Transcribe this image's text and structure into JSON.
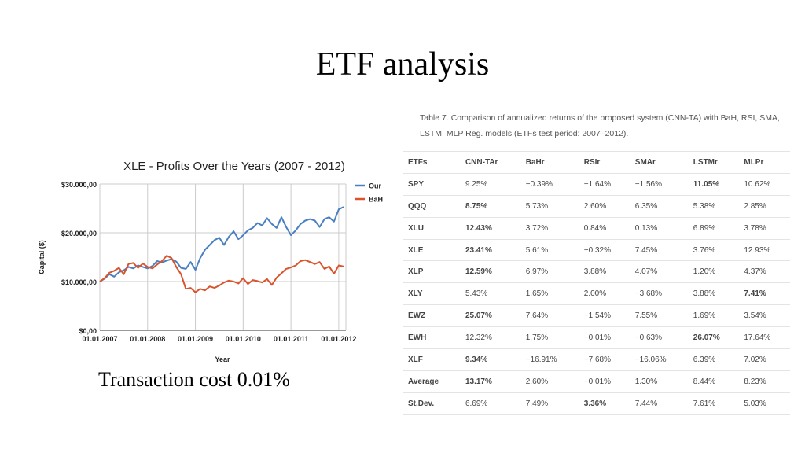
{
  "slide": {
    "title": "ETF analysis",
    "caption": "Transaction cost 0.01%"
  },
  "chart_data": {
    "type": "line",
    "title": "XLE - Profits Over the Years  (2007 - 2012)",
    "xlabel": "Year",
    "ylabel": "Capital ($)",
    "x_ticks": [
      "01.01.2007",
      "01.01.2008",
      "01.01.2009",
      "01.01.2010",
      "01.01.2011",
      "01.01.2012"
    ],
    "y_ticks": [
      "$0,00",
      "$10.000,00",
      "$20.000,00",
      "$30.000,00"
    ],
    "y_tick_values": [
      0,
      10000,
      20000,
      30000
    ],
    "xlim": [
      2007.0,
      2012.15
    ],
    "ylim": [
      0,
      30000
    ],
    "grid": true,
    "legend_position": "right",
    "x": [
      2007.0,
      2007.1,
      2007.2,
      2007.3,
      2007.4,
      2007.5,
      2007.6,
      2007.7,
      2007.8,
      2007.9,
      2008.0,
      2008.1,
      2008.2,
      2008.3,
      2008.4,
      2008.5,
      2008.6,
      2008.7,
      2008.8,
      2008.9,
      2009.0,
      2009.1,
      2009.2,
      2009.3,
      2009.4,
      2009.5,
      2009.6,
      2009.7,
      2009.8,
      2009.9,
      2010.0,
      2010.1,
      2010.2,
      2010.3,
      2010.4,
      2010.5,
      2010.6,
      2010.7,
      2010.8,
      2010.9,
      2011.0,
      2011.1,
      2011.2,
      2011.3,
      2011.4,
      2011.5,
      2011.6,
      2011.7,
      2011.8,
      2011.9,
      2012.0,
      2012.1
    ],
    "series": [
      {
        "name": "Our",
        "color": "#4a7fc1",
        "values": [
          10000,
          10600,
          11500,
          11000,
          11900,
          12300,
          13000,
          12700,
          13300,
          13000,
          12700,
          13200,
          14200,
          13900,
          14300,
          14600,
          14100,
          12800,
          12600,
          14000,
          12400,
          14800,
          16500,
          17500,
          18500,
          19000,
          17500,
          19200,
          20300,
          18700,
          19500,
          20500,
          21000,
          22000,
          21500,
          23000,
          21800,
          21000,
          23200,
          21200,
          19500,
          20500,
          21800,
          22500,
          22800,
          22500,
          21200,
          22800,
          23200,
          22300,
          24800,
          25300
        ]
      },
      {
        "name": "BaH",
        "color": "#d9542c",
        "values": [
          10000,
          10700,
          11800,
          12200,
          12800,
          11500,
          13600,
          13800,
          12800,
          13700,
          13000,
          12700,
          13500,
          14200,
          15300,
          14800,
          13000,
          11500,
          8500,
          8700,
          7800,
          8500,
          8200,
          9000,
          8700,
          9200,
          9800,
          10200,
          10000,
          9600,
          10700,
          9500,
          10300,
          10100,
          9800,
          10500,
          9300,
          10800,
          11700,
          12600,
          12900,
          13300,
          14200,
          14400,
          14000,
          13600,
          14000,
          12600,
          13100,
          11600,
          13300,
          13100
        ]
      }
    ]
  },
  "table": {
    "caption": "Table 7. Comparison of annualized returns of the proposed system (CNN-TA) with BaH, RSI, SMA, LSTM, MLP Reg. models (ETFs test period: 2007–2012).",
    "headers": [
      "ETFs",
      "CNN-TAr",
      "BaHr",
      "RSIr",
      "SMAr",
      "LSTMr",
      "MLPr"
    ],
    "rows": [
      {
        "cells": [
          "SPY",
          "9.25%",
          "−0.39%",
          "−1.64%",
          "−1.56%",
          "11.05%",
          "10.62%"
        ],
        "bold": [
          5
        ]
      },
      {
        "cells": [
          "QQQ",
          "8.75%",
          "5.73%",
          "2.60%",
          "6.35%",
          "5.38%",
          "2.85%"
        ],
        "bold": [
          1
        ]
      },
      {
        "cells": [
          "XLU",
          "12.43%",
          "3.72%",
          "0.84%",
          "0.13%",
          "6.89%",
          "3.78%"
        ],
        "bold": [
          1
        ]
      },
      {
        "cells": [
          "XLE",
          "23.41%",
          "5.61%",
          "−0.32%",
          "7.45%",
          "3.76%",
          "12.93%"
        ],
        "bold": [
          1
        ]
      },
      {
        "cells": [
          "XLP",
          "12.59%",
          "6.97%",
          "3.88%",
          "4.07%",
          "1.20%",
          "4.37%"
        ],
        "bold": [
          1
        ]
      },
      {
        "cells": [
          "XLY",
          "5.43%",
          "1.65%",
          "2.00%",
          "−3.68%",
          "3.88%",
          "7.41%"
        ],
        "bold": [
          6
        ]
      },
      {
        "cells": [
          "EWZ",
          "25.07%",
          "7.64%",
          "−1.54%",
          "7.55%",
          "1.69%",
          "3.54%"
        ],
        "bold": [
          1
        ]
      },
      {
        "cells": [
          "EWH",
          "12.32%",
          "1.75%",
          "−0.01%",
          "−0.63%",
          "26.07%",
          "17.64%"
        ],
        "bold": [
          5
        ]
      },
      {
        "cells": [
          "XLF",
          "9.34%",
          "−16.91%",
          "−7.68%",
          "−16.06%",
          "6.39%",
          "7.02%"
        ],
        "bold": [
          1
        ]
      },
      {
        "cells": [
          "Average",
          "13.17%",
          "2.60%",
          "−0.01%",
          "1.30%",
          "8.44%",
          "8.23%"
        ],
        "bold": [
          1
        ]
      },
      {
        "cells": [
          "St.Dev.",
          "6.69%",
          "7.49%",
          "3.36%",
          "7.44%",
          "7.61%",
          "5.03%"
        ],
        "bold": [
          3
        ]
      }
    ]
  }
}
